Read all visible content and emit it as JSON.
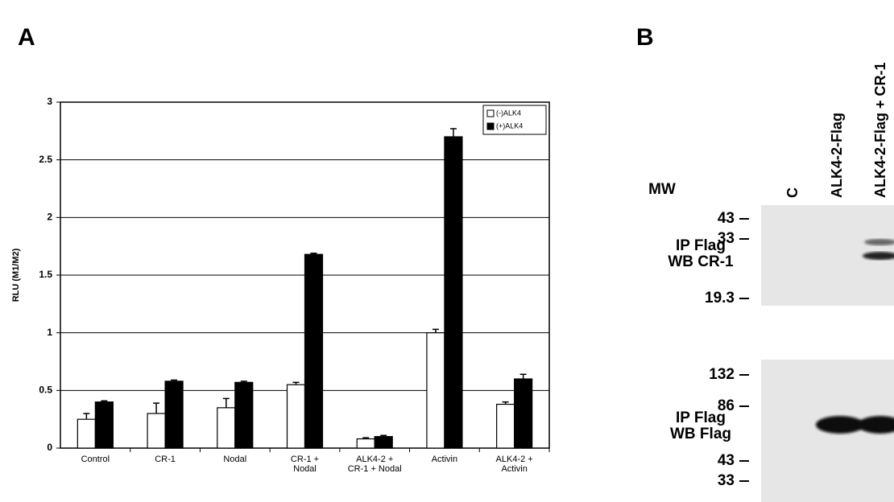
{
  "panel_labels": [
    "A",
    "B"
  ],
  "chart_data": {
    "type": "bar",
    "y_label": "RLU (M1/M2)",
    "categories": [
      "Control",
      "CR-1",
      "Nodal",
      "CR-1 +\nNodal",
      "ALK4-2 +\nCR-1 + Nodal",
      "Activin",
      "ALK4-2 +\nActivin"
    ],
    "series": [
      {
        "name": "(-)ALK4",
        "color": "#ffffff",
        "values": [
          0.25,
          0.3,
          0.35,
          0.55,
          0.08,
          1.0,
          0.38
        ],
        "errors": [
          0.05,
          0.09,
          0.08,
          0.02,
          0.01,
          0.03,
          0.02
        ]
      },
      {
        "name": "(+)ALK4",
        "color": "#000000",
        "values": [
          0.4,
          0.58,
          0.57,
          1.68,
          0.1,
          2.7,
          0.6
        ],
        "errors": [
          0.01,
          0.01,
          0.01,
          0.01,
          0.01,
          0.07,
          0.04
        ]
      }
    ],
    "ylim": [
      0,
      3
    ],
    "yticks": [
      0,
      0.5,
      1,
      1.5,
      2,
      2.5,
      3
    ],
    "grid": true,
    "legend": "top-right"
  },
  "blot": {
    "mw_label": "MW",
    "lanes": [
      "C",
      "ALK4-2-Flag",
      "ALK4-2-Flag + CR-1"
    ],
    "panels": [
      {
        "label": "IP Flag\nWB CR-1",
        "markers": [
          "43",
          "33",
          "19.3"
        ]
      },
      {
        "label": "IP Flag\nWB Flag",
        "markers": [
          "132",
          "86",
          "43",
          "33"
        ]
      }
    ]
  }
}
